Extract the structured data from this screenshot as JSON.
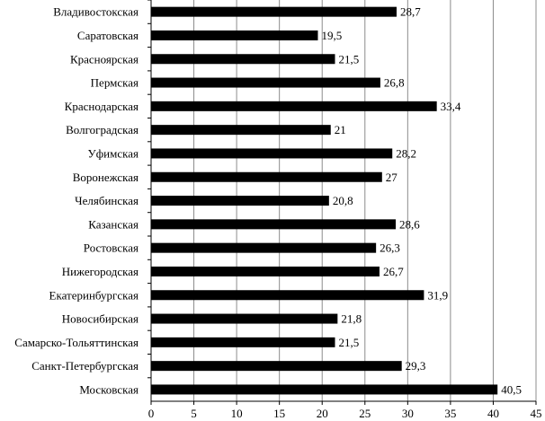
{
  "chart_data": {
    "type": "bar",
    "orientation": "horizontal",
    "categories": [
      "Владивостокская",
      "Саратовская",
      "Красноярская",
      "Пермская",
      "Краснодарская",
      "Волгоградская",
      "Уфимская",
      "Воронежская",
      "Челябинская",
      "Казанская",
      "Ростовская",
      "Нижегородская",
      "Екатеринбургская",
      "Новосибирская",
      "Самарско-Тольяттинская",
      "Санкт-Петербургская",
      "Московская"
    ],
    "values": [
      28.7,
      19.5,
      21.5,
      26.8,
      33.4,
      21,
      28.2,
      27,
      20.8,
      28.6,
      26.3,
      26.7,
      31.9,
      21.8,
      21.5,
      29.3,
      40.5
    ],
    "data_labels": [
      "28,7",
      "19,5",
      "21,5",
      "26,8",
      "33,4",
      "21",
      "28,2",
      "27",
      "20,8",
      "28,6",
      "26,3",
      "26,7",
      "31,9",
      "21,8",
      "21,5",
      "29,3",
      "40,5"
    ],
    "xlim": [
      0,
      45
    ],
    "x_ticks": [
      0,
      5,
      10,
      15,
      20,
      25,
      30,
      35,
      40,
      45
    ],
    "grid": "vertical",
    "bar_color": "#000000",
    "title": "",
    "xlabel": "",
    "ylabel": ""
  }
}
